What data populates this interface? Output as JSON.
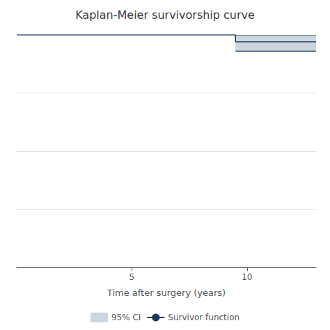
{
  "chart_data": {
    "type": "line",
    "title": "Kaplan-Meier survivorship curve",
    "xlabel": "Time after surgery (years)",
    "xlim": [
      0,
      13
    ],
    "ylim": [
      0,
      1.0
    ],
    "xticks": [
      5,
      10
    ],
    "yticks": [
      0,
      0.25,
      0.5,
      0.75,
      1.0
    ],
    "grid": true,
    "tick_labels": "x",
    "legend": "bottom",
    "series": [
      {
        "name": "95% CI",
        "type": "band",
        "color": "#cdd5df",
        "x": [
          9.5,
          13
        ],
        "lower": [
          0.93,
          0.93
        ],
        "upper": [
          1.0,
          1.0
        ]
      },
      {
        "name": "Survivor function",
        "type": "line",
        "color": "#1b3a5c",
        "x": [
          0,
          9.5,
          9.5,
          13
        ],
        "values": [
          1.0,
          1.0,
          0.97,
          0.97
        ]
      }
    ]
  }
}
